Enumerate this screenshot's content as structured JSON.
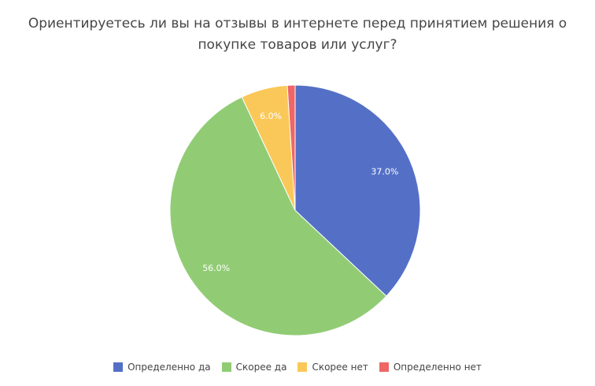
{
  "title_lines": [
    "Ориентируетесь ли вы на отзывы в интернете перед принятием решения о",
    "покупке товаров или услуг?"
  ],
  "chart_data": {
    "type": "pie",
    "title": "Ориентируетесь ли вы на отзывы в интернете перед принятием решения о покупке товаров или услуг?",
    "categories": [
      "Определенно да",
      "Скорее да",
      "Скорее нет",
      "Определенно нет"
    ],
    "values": [
      37.0,
      56.0,
      6.0,
      1.0
    ],
    "labels": [
      "37.0%",
      "56.0%",
      "6.0%",
      ""
    ],
    "colors": [
      "#5470c6",
      "#91cc75",
      "#fac858",
      "#ee6666"
    ],
    "legend_position": "bottom",
    "start_angle": "top, clockwise"
  },
  "legend": [
    {
      "label": "Определенно да",
      "color": "#5470c6"
    },
    {
      "label": "Скорее да",
      "color": "#91cc75"
    },
    {
      "label": "Скорее нет",
      "color": "#fac858"
    },
    {
      "label": "Определенно нет",
      "color": "#ee6666"
    }
  ]
}
